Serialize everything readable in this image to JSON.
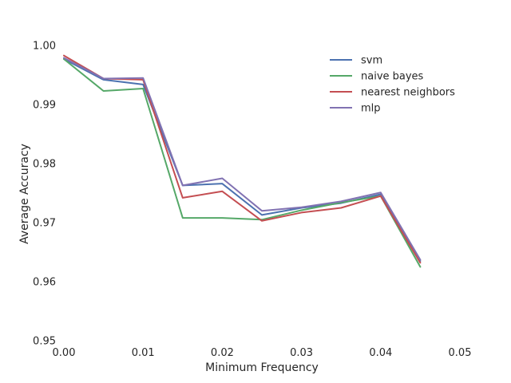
{
  "chart_data": {
    "type": "line",
    "title": "",
    "xlabel": "Minimum Frequency",
    "ylabel": "Average Accuracy",
    "xlim": [
      0.0,
      0.05
    ],
    "ylim": [
      0.95,
      1.0
    ],
    "xticks": [
      "0.00",
      "0.01",
      "0.02",
      "0.03",
      "0.04",
      "0.05"
    ],
    "yticks": [
      "0.95",
      "0.96",
      "0.97",
      "0.98",
      "0.99",
      "1.00"
    ],
    "grid": false,
    "legend_position": "upper-right",
    "x": [
      0.0,
      0.005,
      0.01,
      0.015,
      0.02,
      0.025,
      0.03,
      0.035,
      0.04,
      0.045
    ],
    "series": [
      {
        "name": "svm",
        "color": "#4c72b0",
        "values": [
          0.9977,
          0.9942,
          0.9934,
          0.9763,
          0.9766,
          0.9713,
          0.9725,
          0.9733,
          0.9748,
          0.9635
        ]
      },
      {
        "name": "naive bayes",
        "color": "#55a868",
        "values": [
          0.9977,
          0.9923,
          0.9927,
          0.9708,
          0.9708,
          0.9705,
          0.9721,
          0.9734,
          0.9745,
          0.9625
        ]
      },
      {
        "name": "nearest neighbors",
        "color": "#c44e52",
        "values": [
          0.9983,
          0.9944,
          0.9942,
          0.9742,
          0.9753,
          0.9703,
          0.9717,
          0.9725,
          0.9745,
          0.9632
        ]
      },
      {
        "name": "mlp",
        "color": "#8172b2",
        "values": [
          0.9979,
          0.9944,
          0.9945,
          0.9763,
          0.9775,
          0.972,
          0.9726,
          0.9736,
          0.9751,
          0.9637
        ]
      }
    ]
  }
}
